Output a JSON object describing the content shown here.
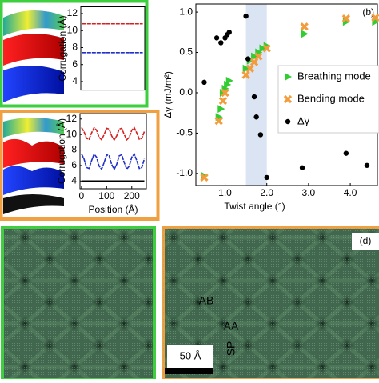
{
  "chart_data": [
    {
      "type": "line",
      "ylabel": "Corrugation (Å)",
      "x": [
        0,
        10,
        20,
        30,
        40,
        50,
        60,
        70,
        80,
        90,
        100,
        110,
        120,
        130,
        140,
        150,
        160,
        170,
        180,
        190,
        200,
        210,
        220,
        230,
        240,
        250
      ],
      "xlim": [
        -6,
        258
      ],
      "ylim": [
        3,
        12.8
      ],
      "yticks": [
        4,
        6,
        8,
        10,
        12
      ],
      "series": [
        {
          "color": "#d62020",
          "values": [
            10.8,
            10.8,
            10.8,
            10.8,
            10.8,
            10.8,
            10.8,
            10.8,
            10.8,
            10.8,
            10.8,
            10.8,
            10.8,
            10.8,
            10.8,
            10.8,
            10.8,
            10.8,
            10.8,
            10.8,
            10.8,
            10.8,
            10.8,
            10.8,
            10.8,
            10.8
          ]
        },
        {
          "color": "#2030c8",
          "values": [
            7.4,
            7.4,
            7.4,
            7.4,
            7.4,
            7.4,
            7.4,
            7.4,
            7.4,
            7.4,
            7.4,
            7.4,
            7.4,
            7.4,
            7.4,
            7.4,
            7.4,
            7.4,
            7.4,
            7.4,
            7.4,
            7.4,
            7.4,
            7.4,
            7.4,
            7.4
          ]
        }
      ]
    },
    {
      "type": "line",
      "ylabel": "Corrugation (Å)",
      "xlabel": "Position (Å)",
      "x": [
        0,
        10,
        20,
        30,
        40,
        50,
        60,
        70,
        80,
        90,
        100,
        110,
        120,
        130,
        140,
        150,
        160,
        170,
        180,
        190,
        200,
        210,
        220,
        230,
        240,
        250
      ],
      "xlim": [
        -6,
        258
      ],
      "xticks": [
        0,
        100,
        200
      ],
      "ylim": [
        3,
        12.7
      ],
      "yticks": [
        4,
        6,
        8,
        10,
        12
      ],
      "series": [
        {
          "color": "#d62020",
          "values": [
            10.9,
            10.38,
            9.5,
            9.39,
            10.2,
            10.88,
            10.56,
            9.64,
            9.32,
            10.0,
            10.81,
            10.7,
            9.82,
            9.3,
            9.82,
            10.7,
            10.81,
            10.0,
            9.32,
            9.64,
            10.56,
            10.88,
            10.2,
            9.39,
            9.5,
            10.38
          ]
        },
        {
          "color": "#2030c8",
          "values": [
            7.5,
            6.85,
            5.75,
            5.62,
            6.62,
            7.47,
            7.07,
            5.93,
            5.53,
            6.38,
            7.39,
            7.25,
            6.15,
            5.5,
            6.15,
            7.25,
            7.39,
            6.38,
            5.53,
            5.93,
            7.07,
            7.47,
            6.62,
            5.62,
            5.75,
            6.85
          ]
        },
        {
          "color": "#000000",
          "values": [
            4,
            4,
            4,
            4,
            4,
            4,
            4,
            4,
            4,
            4,
            4,
            4,
            4,
            4,
            4,
            4,
            4,
            4,
            4,
            4,
            4,
            4,
            4,
            4,
            4,
            4
          ]
        }
      ]
    },
    {
      "type": "scatter",
      "panel_label": "(b)",
      "xlabel": "Twist angle (°)",
      "ylabel": "Δγ (mJ/m²)",
      "xlim": [
        0.3,
        4.65
      ],
      "ylim": [
        -1.15,
        1.1
      ],
      "xticks": [
        {
          "value": 1,
          "label": "1.0"
        },
        {
          "value": 2,
          "label": "2.0"
        },
        {
          "value": 3,
          "label": "3.0"
        },
        {
          "value": 4,
          "label": "4.0"
        }
      ],
      "yticks": [
        {
          "value": -1,
          "label": "-1.0"
        },
        {
          "value": -0.5,
          "label": "-0.5"
        },
        {
          "value": 0,
          "label": "0.0"
        },
        {
          "value": 0.5,
          "label": "0.5"
        },
        {
          "value": 1,
          "label": "1.0"
        }
      ],
      "highlight_span": [
        1.5,
        2.0
      ],
      "series": [
        {
          "name": "Breathing mode",
          "color": "#33cc33",
          "marker": "triangle",
          "x": [
            0.5,
            0.85,
            0.9,
            0.95,
            1.0,
            1.05,
            1.1,
            1.5,
            1.6,
            1.7,
            1.8,
            1.9,
            2.0,
            2.9,
            3.9,
            4.6
          ],
          "values": [
            -1.03,
            -0.3,
            -0.2,
            0.0,
            0.05,
            0.1,
            0.15,
            0.3,
            0.4,
            0.45,
            0.5,
            0.55,
            0.58,
            0.73,
            0.88,
            0.88
          ]
        },
        {
          "name": "Bending mode",
          "color": "#f39c3b",
          "marker": "x",
          "x": [
            0.5,
            0.85,
            0.95,
            1.0,
            1.5,
            1.6,
            1.7,
            1.8,
            2.0,
            2.9,
            3.9,
            4.6
          ],
          "values": [
            -1.05,
            -0.35,
            -0.1,
            0.0,
            0.22,
            0.3,
            0.38,
            0.45,
            0.55,
            0.82,
            0.92,
            0.93
          ]
        },
        {
          "name": "Δγ",
          "color": "#000000",
          "marker": "circle",
          "x": [
            0.5,
            0.8,
            0.9,
            1.0,
            1.05,
            1.1,
            1.5,
            1.55,
            1.7,
            1.75,
            1.85,
            2.0,
            2.85,
            3.9,
            4.4
          ],
          "values": [
            0.13,
            0.68,
            0.62,
            0.68,
            0.72,
            0.75,
            0.95,
            0.42,
            -0.05,
            -0.3,
            -0.52,
            -1.05,
            -0.93,
            -0.75,
            -0.9
          ]
        }
      ]
    }
  ],
  "image_labels": {
    "panel_d": "(d)",
    "ab": "AB",
    "aa": "AA",
    "sp": "SP",
    "scale": "50 Å"
  }
}
